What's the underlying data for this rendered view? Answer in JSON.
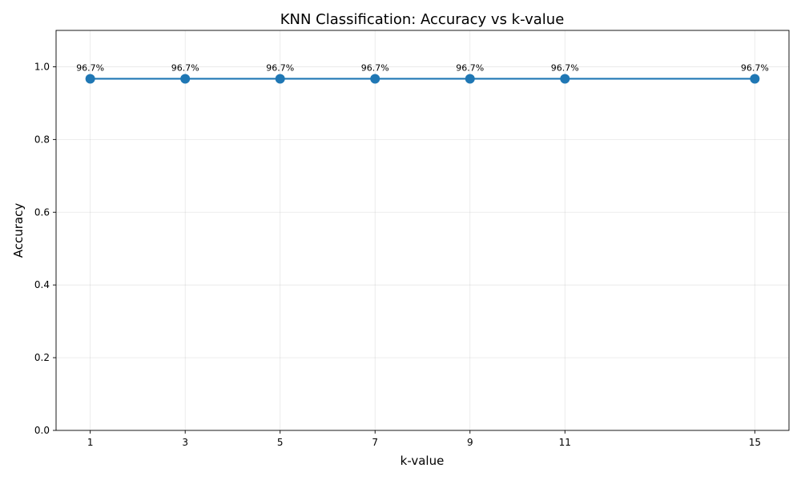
{
  "chart_data": {
    "type": "line",
    "title": "KNN Classification: Accuracy vs k-value",
    "xlabel": "k-value",
    "ylabel": "Accuracy",
    "x": [
      1,
      3,
      5,
      7,
      9,
      11,
      15
    ],
    "x_ticks": [
      "1",
      "3",
      "5",
      "7",
      "9",
      "11",
      "15"
    ],
    "xlim": [
      0.28,
      15.72
    ],
    "ylim": [
      0,
      1.1
    ],
    "y_ticks": [
      "0.0",
      "0.2",
      "0.4",
      "0.6",
      "0.8",
      "1.0"
    ],
    "series": [
      {
        "values": [
          0.967,
          0.967,
          0.967,
          0.967,
          0.967,
          0.967,
          0.967
        ],
        "labels": [
          "96.7%",
          "96.7%",
          "96.7%",
          "96.7%",
          "96.7%",
          "96.7%",
          "96.7%"
        ],
        "color": "#1f77b4",
        "marker": "circle"
      }
    ],
    "grid": true,
    "legend": "none"
  }
}
